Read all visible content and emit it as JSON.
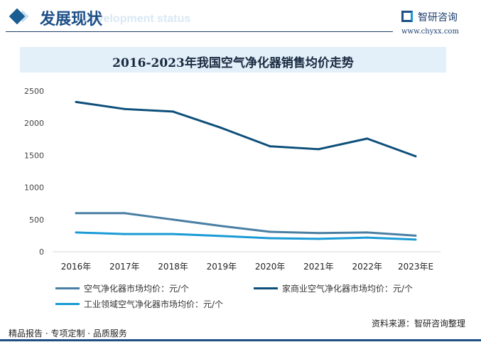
{
  "header": {
    "title": "发展现状",
    "subtitle": "development status",
    "logo_text": "智研咨询",
    "logo_url": "www.chyxx.com"
  },
  "footer": {
    "left": "精品报告 · 专项定制 · 品质服务",
    "source": "资料来源：智研咨询整理"
  },
  "chart_data": {
    "type": "line",
    "title": "2016-2023年我国空气净化器销售均价走势",
    "categories": [
      "2016年",
      "2017年",
      "2018年",
      "2019年",
      "2020年",
      "2021年",
      "2022年",
      "2023年E"
    ],
    "ylim": [
      0,
      2500
    ],
    "yticks": [
      "0",
      "500",
      "1000",
      "1500",
      "2000",
      "2500"
    ],
    "grid": false,
    "legend_position": "bottom",
    "series": [
      {
        "name": "空气净化器市场均价：元/个",
        "color": "#4a7fa3",
        "values": [
          600,
          600,
          500,
          400,
          310,
          290,
          300,
          250
        ]
      },
      {
        "name": "家商业空气净化器市场均价：元/个",
        "color": "#0d4f7a",
        "values": [
          2330,
          2220,
          2180,
          1925,
          1640,
          1595,
          1760,
          1485
        ]
      },
      {
        "name": "工业领域空气净化器市场均价：元/个",
        "color": "#1a9ad6",
        "values": [
          300,
          275,
          275,
          245,
          210,
          200,
          220,
          190
        ]
      }
    ]
  }
}
